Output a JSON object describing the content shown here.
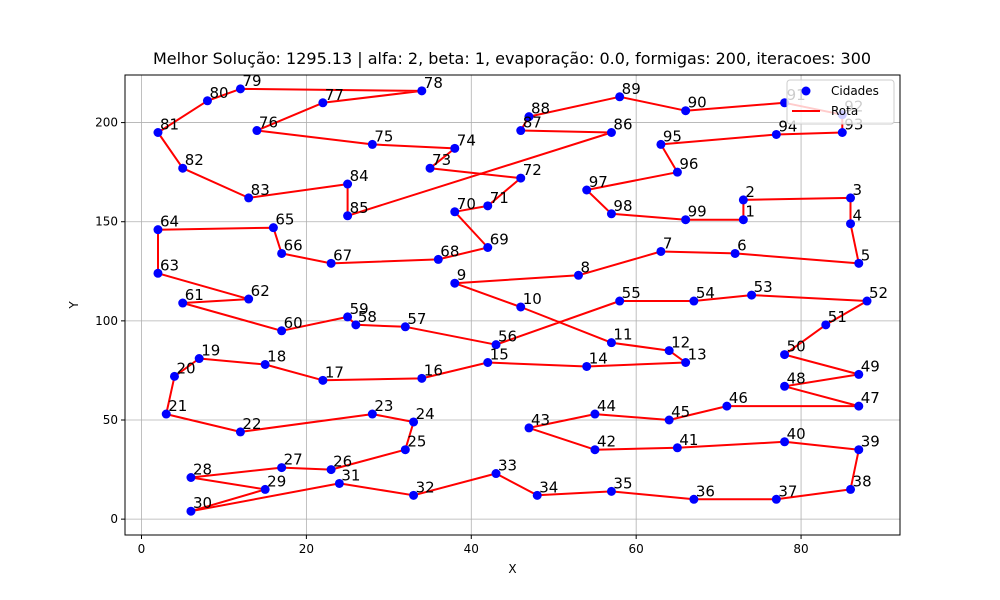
{
  "chart_data": {
    "type": "scatter",
    "title": "Melhor Solução: 1295.13 | alfa: 2, beta: 1, evaporação: 0.0, formigas: 200, iteracoes: 300",
    "xlabel": "X",
    "ylabel": "Y",
    "xlim": [
      -2,
      92
    ],
    "ylim": [
      -8,
      224
    ],
    "xticks": [
      0,
      20,
      40,
      60,
      80
    ],
    "yticks": [
      0,
      50,
      100,
      150,
      200
    ],
    "grid": true,
    "legend_position": "top-right",
    "series": [
      {
        "name": "Cidades",
        "kind": "points",
        "color": "#0000ff"
      },
      {
        "name": "Rota",
        "kind": "line",
        "color": "#ff0000"
      }
    ],
    "cities": [
      {
        "id": "1",
        "x": 73,
        "y": 151
      },
      {
        "id": "2",
        "x": 73,
        "y": 161
      },
      {
        "id": "3",
        "x": 86,
        "y": 162
      },
      {
        "id": "4",
        "x": 86,
        "y": 149
      },
      {
        "id": "5",
        "x": 87,
        "y": 129
      },
      {
        "id": "6",
        "x": 72,
        "y": 134
      },
      {
        "id": "7",
        "x": 63,
        "y": 135
      },
      {
        "id": "8",
        "x": 53,
        "y": 123
      },
      {
        "id": "9",
        "x": 38,
        "y": 119
      },
      {
        "id": "10",
        "x": 46,
        "y": 107
      },
      {
        "id": "11",
        "x": 57,
        "y": 89
      },
      {
        "id": "12",
        "x": 64,
        "y": 85
      },
      {
        "id": "13",
        "x": 66,
        "y": 79
      },
      {
        "id": "14",
        "x": 54,
        "y": 77
      },
      {
        "id": "15",
        "x": 42,
        "y": 79
      },
      {
        "id": "16",
        "x": 34,
        "y": 71
      },
      {
        "id": "17",
        "x": 22,
        "y": 70
      },
      {
        "id": "18",
        "x": 15,
        "y": 78
      },
      {
        "id": "19",
        "x": 7,
        "y": 81
      },
      {
        "id": "20",
        "x": 4,
        "y": 72
      },
      {
        "id": "21",
        "x": 3,
        "y": 53
      },
      {
        "id": "22",
        "x": 12,
        "y": 44
      },
      {
        "id": "23",
        "x": 28,
        "y": 53
      },
      {
        "id": "24",
        "x": 33,
        "y": 49
      },
      {
        "id": "25",
        "x": 32,
        "y": 35
      },
      {
        "id": "26",
        "x": 23,
        "y": 25
      },
      {
        "id": "27",
        "x": 17,
        "y": 26
      },
      {
        "id": "28",
        "x": 6,
        "y": 21
      },
      {
        "id": "29",
        "x": 15,
        "y": 15
      },
      {
        "id": "30",
        "x": 6,
        "y": 4
      },
      {
        "id": "31",
        "x": 24,
        "y": 18
      },
      {
        "id": "32",
        "x": 33,
        "y": 12
      },
      {
        "id": "33",
        "x": 43,
        "y": 23
      },
      {
        "id": "34",
        "x": 48,
        "y": 12
      },
      {
        "id": "35",
        "x": 57,
        "y": 14
      },
      {
        "id": "36",
        "x": 67,
        "y": 10
      },
      {
        "id": "37",
        "x": 77,
        "y": 10
      },
      {
        "id": "38",
        "x": 86,
        "y": 15
      },
      {
        "id": "39",
        "x": 87,
        "y": 35
      },
      {
        "id": "40",
        "x": 78,
        "y": 39
      },
      {
        "id": "41",
        "x": 65,
        "y": 36
      },
      {
        "id": "42",
        "x": 55,
        "y": 35
      },
      {
        "id": "43",
        "x": 47,
        "y": 46
      },
      {
        "id": "44",
        "x": 55,
        "y": 53
      },
      {
        "id": "45",
        "x": 64,
        "y": 50
      },
      {
        "id": "46",
        "x": 71,
        "y": 57
      },
      {
        "id": "47",
        "x": 87,
        "y": 57
      },
      {
        "id": "48",
        "x": 78,
        "y": 67
      },
      {
        "id": "49",
        "x": 87,
        "y": 73
      },
      {
        "id": "50",
        "x": 78,
        "y": 83
      },
      {
        "id": "51",
        "x": 83,
        "y": 98
      },
      {
        "id": "52",
        "x": 88,
        "y": 110
      },
      {
        "id": "53",
        "x": 74,
        "y": 113
      },
      {
        "id": "54",
        "x": 67,
        "y": 110
      },
      {
        "id": "55",
        "x": 58,
        "y": 110
      },
      {
        "id": "56",
        "x": 43,
        "y": 88
      },
      {
        "id": "57",
        "x": 32,
        "y": 97
      },
      {
        "id": "58",
        "x": 26,
        "y": 98
      },
      {
        "id": "59",
        "x": 25,
        "y": 102
      },
      {
        "id": "60",
        "x": 17,
        "y": 95
      },
      {
        "id": "61",
        "x": 5,
        "y": 109
      },
      {
        "id": "62",
        "x": 13,
        "y": 111
      },
      {
        "id": "63",
        "x": 2,
        "y": 124
      },
      {
        "id": "64",
        "x": 2,
        "y": 146
      },
      {
        "id": "65",
        "x": 16,
        "y": 147
      },
      {
        "id": "66",
        "x": 17,
        "y": 134
      },
      {
        "id": "67",
        "x": 23,
        "y": 129
      },
      {
        "id": "68",
        "x": 36,
        "y": 131
      },
      {
        "id": "69",
        "x": 42,
        "y": 137
      },
      {
        "id": "70",
        "x": 38,
        "y": 155
      },
      {
        "id": "71",
        "x": 42,
        "y": 158
      },
      {
        "id": "72",
        "x": 46,
        "y": 172
      },
      {
        "id": "73",
        "x": 35,
        "y": 177
      },
      {
        "id": "74",
        "x": 38,
        "y": 187
      },
      {
        "id": "75",
        "x": 28,
        "y": 189
      },
      {
        "id": "76",
        "x": 14,
        "y": 196
      },
      {
        "id": "77",
        "x": 22,
        "y": 210
      },
      {
        "id": "78",
        "x": 34,
        "y": 216
      },
      {
        "id": "79",
        "x": 12,
        "y": 217
      },
      {
        "id": "80",
        "x": 8,
        "y": 211
      },
      {
        "id": "81",
        "x": 2,
        "y": 195
      },
      {
        "id": "82",
        "x": 5,
        "y": 177
      },
      {
        "id": "83",
        "x": 13,
        "y": 162
      },
      {
        "id": "84",
        "x": 25,
        "y": 169
      },
      {
        "id": "85",
        "x": 25,
        "y": 153
      },
      {
        "id": "86",
        "x": 57,
        "y": 195
      },
      {
        "id": "87",
        "x": 46,
        "y": 196
      },
      {
        "id": "88",
        "x": 47,
        "y": 203
      },
      {
        "id": "89",
        "x": 58,
        "y": 213
      },
      {
        "id": "90",
        "x": 66,
        "y": 206
      },
      {
        "id": "91",
        "x": 78,
        "y": 210
      },
      {
        "id": "92",
        "x": 85,
        "y": 204
      },
      {
        "id": "93",
        "x": 85,
        "y": 195
      },
      {
        "id": "94",
        "x": 77,
        "y": 194
      },
      {
        "id": "95",
        "x": 63,
        "y": 189
      },
      {
        "id": "96",
        "x": 65,
        "y": 175
      },
      {
        "id": "97",
        "x": 54,
        "y": 166
      },
      {
        "id": "98",
        "x": 57,
        "y": 154
      },
      {
        "id": "99",
        "x": 66,
        "y": 151
      }
    ],
    "route": [
      "1",
      "2",
      "3",
      "4",
      "5",
      "6",
      "7",
      "8",
      "9",
      "10",
      "11",
      "12",
      "13",
      "14",
      "15",
      "16",
      "17",
      "18",
      "19",
      "20",
      "21",
      "22",
      "23",
      "24",
      "25",
      "26",
      "27",
      "28",
      "29",
      "30",
      "31",
      "32",
      "33",
      "34",
      "35",
      "36",
      "37",
      "38",
      "39",
      "40",
      "41",
      "42",
      "43",
      "44",
      "45",
      "46",
      "47",
      "48",
      "49",
      "50",
      "51",
      "52",
      "53",
      "54",
      "55",
      "56",
      "57",
      "58",
      "59",
      "60",
      "61",
      "62",
      "63",
      "64",
      "65",
      "66",
      "67",
      "68",
      "69",
      "70",
      "71",
      "72",
      "73",
      "74",
      "75",
      "76",
      "77",
      "78",
      "79",
      "80",
      "81",
      "82",
      "83",
      "84",
      "85",
      "86",
      "87",
      "88",
      "89",
      "90",
      "91",
      "92",
      "93",
      "94",
      "95",
      "96",
      "97",
      "98",
      "99",
      "1"
    ]
  }
}
